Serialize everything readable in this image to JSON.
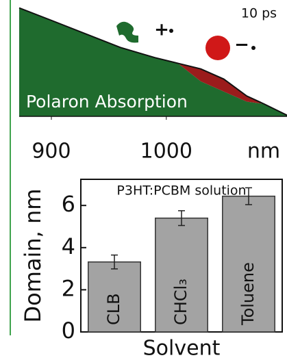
{
  "chart_data": [
    {
      "type": "area",
      "stacked": true,
      "annotation": "10 ps",
      "label": "Polaron Absorption",
      "x_label": "nm",
      "annotations": [
        "+",
        "−"
      ],
      "x": [
        872,
        900,
        930,
        960,
        990,
        1010,
        1030,
        1050,
        1070,
        1085,
        1105
      ],
      "series": [
        {
          "color": "#1f6b2e",
          "values": [
            0.96,
            0.85,
            0.73,
            0.61,
            0.52,
            0.47,
            0.31,
            0.22,
            0.13,
            0.11,
            0.01
          ]
        },
        {
          "color": "#9b1c1c",
          "values": [
            0,
            0,
            0,
            0,
            0,
            0,
            0.11,
            0.11,
            0.05,
            0,
            0
          ]
        }
      ],
      "xlim": [
        872,
        1105
      ],
      "xticks": [
        900,
        1000
      ],
      "ylim": [
        0,
        1
      ]
    },
    {
      "type": "bar",
      "title": "P3HT:PCBM solution",
      "x_label": "Solvent",
      "y_label": "Domain, nm",
      "categories": [
        "CLB",
        "CHCl₃",
        "Toluene"
      ],
      "values": [
        3.32,
        5.4,
        6.44
      ],
      "errors": [
        0.33,
        0.35,
        0.4
      ],
      "color": "#a3a3a3",
      "ylim": [
        0,
        7.24
      ],
      "yticks": [
        0,
        2,
        4,
        6
      ]
    }
  ]
}
